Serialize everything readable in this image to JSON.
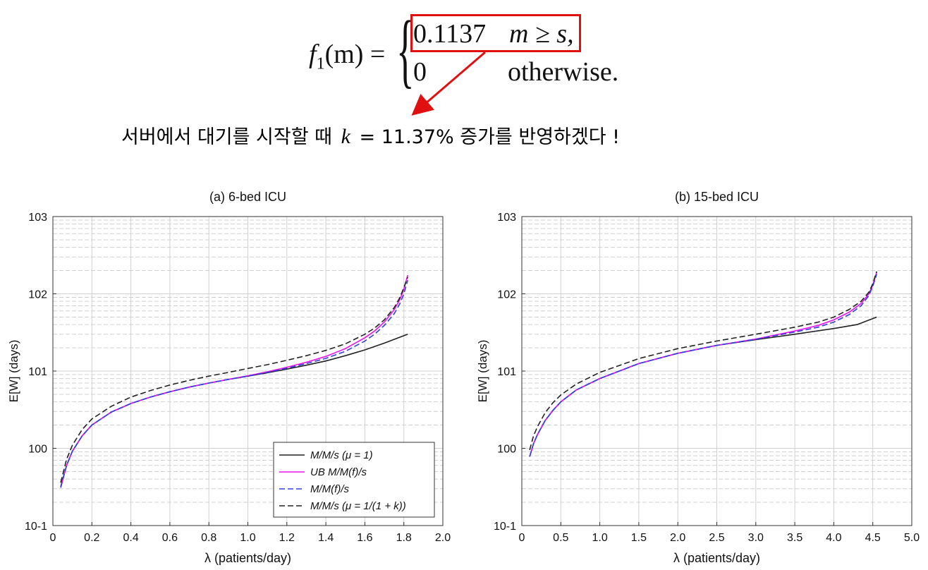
{
  "formula": {
    "lhs_f": "f",
    "lhs_sub": "1",
    "lhs_rest": "(m) =",
    "case1_value": "0.1137",
    "case1_condition": "m ≥ s,",
    "case2_value": "0",
    "case2_condition": "otherwise."
  },
  "note": {
    "text_before": "서버에서 대기를 시작할 때",
    "k_symbol": "k",
    "text_after": "= 11.37% 증가를 반영하겠다 !"
  },
  "colors": {
    "highlight": "#e01010",
    "mms": "#222222",
    "ub": "#ee10ee",
    "mmf": "#3040e0",
    "mms_k": "#222222",
    "grid": "#d0d0d0"
  },
  "chart_data": [
    {
      "type": "line",
      "title": "(a) 6-bed ICU",
      "xlabel": "λ (patients/day)",
      "ylabel": "E[W] (days)",
      "yscale": "log",
      "xlim": [
        0,
        2.0
      ],
      "ylim": [
        0.1,
        1000
      ],
      "xticks": [
        "0",
        "0.2",
        "0.4",
        "0.6",
        "0.8",
        "1.0",
        "1.2",
        "1.4",
        "1.6",
        "1.8",
        "2.0"
      ],
      "yticks": [
        "10-1",
        "100",
        "101",
        "102",
        "103"
      ],
      "grid": true,
      "legend_position": "bottom-right",
      "series": [
        {
          "name": "M/M/s (μ = 1)",
          "key": "mms",
          "dash": "solid",
          "x": [
            0.04,
            0.07,
            0.1,
            0.15,
            0.2,
            0.3,
            0.4,
            0.5,
            0.6,
            0.7,
            0.8,
            0.9,
            1.0,
            1.1,
            1.2,
            1.3,
            1.4,
            1.5,
            1.6,
            1.7,
            1.82
          ],
          "y": [
            0.32,
            0.6,
            0.92,
            1.45,
            2.0,
            2.95,
            3.8,
            4.6,
            5.4,
            6.2,
            7.0,
            7.8,
            8.6,
            9.5,
            10.6,
            11.9,
            13.5,
            15.8,
            18.8,
            23.0,
            30.0
          ]
        },
        {
          "name": "UB M/M(f)/s",
          "key": "ub",
          "dash": "solid",
          "x": [
            0.04,
            0.07,
            0.1,
            0.15,
            0.2,
            0.3,
            0.4,
            0.5,
            0.6,
            0.7,
            0.8,
            0.9,
            1.0,
            1.1,
            1.2,
            1.3,
            1.4,
            1.5,
            1.6,
            1.65,
            1.7,
            1.75,
            1.78,
            1.8,
            1.82
          ],
          "y": [
            0.31,
            0.6,
            0.92,
            1.45,
            2.0,
            2.95,
            3.8,
            4.6,
            5.4,
            6.2,
            7.0,
            7.8,
            8.7,
            9.8,
            11.2,
            13.0,
            15.5,
            19.5,
            27.0,
            33.0,
            43.0,
            62.0,
            85.0,
            115.0,
            175.0
          ]
        },
        {
          "name": "M/M(f)/s",
          "key": "mmf",
          "dash": "dash",
          "x": [
            0.04,
            0.07,
            0.1,
            0.15,
            0.2,
            0.3,
            0.4,
            0.5,
            0.6,
            0.7,
            0.8,
            0.9,
            1.0,
            1.1,
            1.2,
            1.3,
            1.4,
            1.5,
            1.6,
            1.65,
            1.7,
            1.75,
            1.78,
            1.8,
            1.82
          ],
          "y": [
            0.31,
            0.6,
            0.92,
            1.45,
            2.0,
            2.95,
            3.8,
            4.6,
            5.4,
            6.2,
            7.0,
            7.8,
            8.6,
            9.6,
            10.9,
            12.5,
            14.6,
            18.0,
            24.5,
            30.0,
            39.0,
            55.0,
            75.0,
            100.0,
            150.0
          ]
        },
        {
          "name": "M/M/s (μ = 1/(1 + k))",
          "key": "mms_k",
          "dash": "dash",
          "x": [
            0.04,
            0.07,
            0.1,
            0.15,
            0.2,
            0.3,
            0.4,
            0.5,
            0.6,
            0.7,
            0.8,
            0.9,
            1.0,
            1.1,
            1.2,
            1.3,
            1.4,
            1.5,
            1.6,
            1.65,
            1.7,
            1.75,
            1.78,
            1.8,
            1.82
          ],
          "y": [
            0.36,
            0.72,
            1.1,
            1.75,
            2.4,
            3.5,
            4.6,
            5.6,
            6.6,
            7.6,
            8.6,
            9.6,
            10.8,
            12.1,
            13.8,
            15.8,
            18.5,
            22.5,
            30.0,
            36.0,
            46.0,
            66.0,
            90.0,
            120.0,
            165.0
          ]
        }
      ]
    },
    {
      "type": "line",
      "title": "(b) 15-bed ICU",
      "xlabel": "λ (patients/day)",
      "ylabel": "E[W] (days)",
      "yscale": "log",
      "xlim": [
        0,
        5.0
      ],
      "ylim": [
        0.1,
        1000
      ],
      "xticks": [
        "0",
        "0.5",
        "1.0",
        "1.5",
        "2.0",
        "2.5",
        "3.0",
        "3.5",
        "4.0",
        "4.5",
        "5.0"
      ],
      "yticks": [
        "10-1",
        "100",
        "101",
        "102",
        "103"
      ],
      "grid": true,
      "series": [
        {
          "name": "M/M/s (μ = 1)",
          "key": "mms",
          "dash": "solid",
          "x": [
            0.1,
            0.15,
            0.2,
            0.3,
            0.4,
            0.5,
            0.7,
            1.0,
            1.5,
            2.0,
            2.5,
            3.0,
            3.5,
            4.0,
            4.3,
            4.55
          ],
          "y": [
            0.78,
            1.15,
            1.5,
            2.3,
            3.1,
            4.0,
            5.7,
            8.0,
            12.5,
            17.0,
            21.5,
            25.5,
            30.0,
            35.5,
            40.0,
            50.0
          ]
        },
        {
          "name": "UB M/M(f)/s",
          "key": "ub",
          "dash": "solid",
          "x": [
            0.1,
            0.15,
            0.2,
            0.3,
            0.4,
            0.5,
            0.7,
            1.0,
            1.5,
            2.0,
            2.5,
            3.0,
            3.5,
            3.8,
            4.0,
            4.2,
            4.35,
            4.45,
            4.5,
            4.55
          ],
          "y": [
            0.78,
            1.15,
            1.5,
            2.3,
            3.1,
            4.0,
            5.7,
            8.0,
            12.5,
            17.0,
            21.5,
            26.0,
            33.0,
            39.0,
            46.0,
            58.0,
            75.0,
            100.0,
            130.0,
            190.0
          ]
        },
        {
          "name": "M/M(f)/s",
          "key": "mmf",
          "dash": "dash",
          "x": [
            0.1,
            0.15,
            0.2,
            0.3,
            0.4,
            0.5,
            0.7,
            1.0,
            1.5,
            2.0,
            2.5,
            3.0,
            3.5,
            3.8,
            4.0,
            4.2,
            4.35,
            4.45,
            4.5,
            4.55
          ],
          "y": [
            0.78,
            1.15,
            1.5,
            2.3,
            3.1,
            4.0,
            5.7,
            8.0,
            12.5,
            17.0,
            21.5,
            25.8,
            32.0,
            37.0,
            43.0,
            54.0,
            70.0,
            95.0,
            125.0,
            180.0
          ]
        },
        {
          "name": "M/M/s (μ = 1/(1 + k))",
          "key": "mms_k",
          "dash": "dash",
          "x": [
            0.1,
            0.15,
            0.2,
            0.3,
            0.4,
            0.5,
            0.7,
            1.0,
            1.5,
            2.0,
            2.5,
            3.0,
            3.5,
            3.8,
            4.0,
            4.2,
            4.35,
            4.45,
            4.5,
            4.55
          ],
          "y": [
            0.95,
            1.45,
            1.9,
            2.9,
            3.9,
            4.9,
            6.8,
            9.6,
            14.5,
            19.5,
            24.5,
            30.0,
            37.0,
            43.0,
            50.0,
            63.0,
            80.0,
            105.0,
            135.0,
            195.0
          ]
        }
      ]
    }
  ]
}
